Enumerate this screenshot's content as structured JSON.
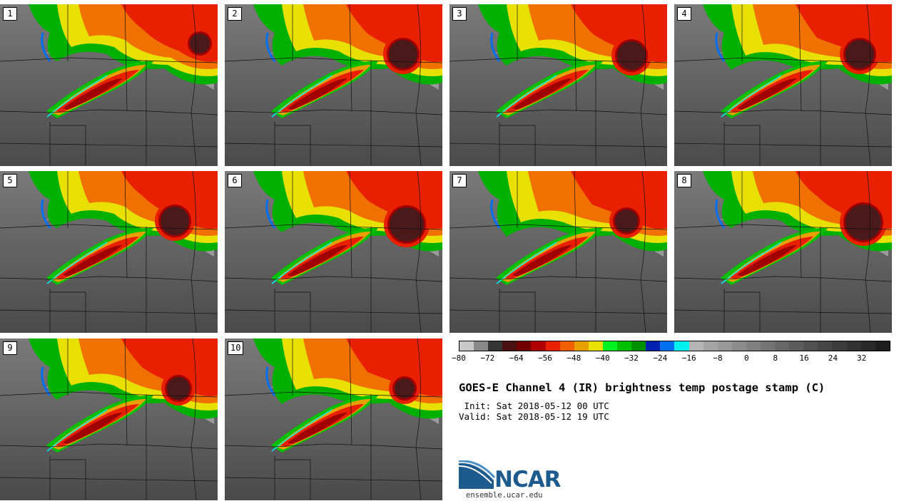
{
  "panels": [
    {
      "label": "1"
    },
    {
      "label": "2"
    },
    {
      "label": "3"
    },
    {
      "label": "4"
    },
    {
      "label": "5"
    },
    {
      "label": "6"
    },
    {
      "label": "7"
    },
    {
      "label": "8"
    },
    {
      "label": "9"
    },
    {
      "label": "10"
    }
  ],
  "colorbar": {
    "colors": [
      "#c8c8c8",
      "#888888",
      "#343434",
      "#4a1010",
      "#700000",
      "#b00000",
      "#e82000",
      "#f06000",
      "#e8a000",
      "#e8e000",
      "#00f020",
      "#00c000",
      "#009000",
      "#0020b0",
      "#0070f0",
      "#00f0f0",
      "#b4b4b4",
      "#a4a4a4",
      "#989898",
      "#8c8c8c",
      "#808080",
      "#747474",
      "#686868",
      "#5c5c5c",
      "#505050",
      "#464646",
      "#3c3c3c",
      "#323232",
      "#282828",
      "#1e1e1e"
    ],
    "ticks": [
      "−80",
      "−72",
      "−64",
      "−56",
      "−48",
      "−40",
      "−32",
      "−24",
      "−16",
      "−8",
      "0",
      "8",
      "16",
      "24",
      "32"
    ]
  },
  "title": "GOES-E Channel 4 (IR) brightness temp postage stamp (C)",
  "init_line": " Init: Sat 2018-05-12 00 UTC",
  "valid_line": "Valid: Sat 2018-05-12 19 UTC",
  "logo": {
    "text": "NCAR",
    "colors": [
      "#1d5a8e",
      "#4a90c8"
    ]
  },
  "site": "ensemble.ucar.edu"
}
